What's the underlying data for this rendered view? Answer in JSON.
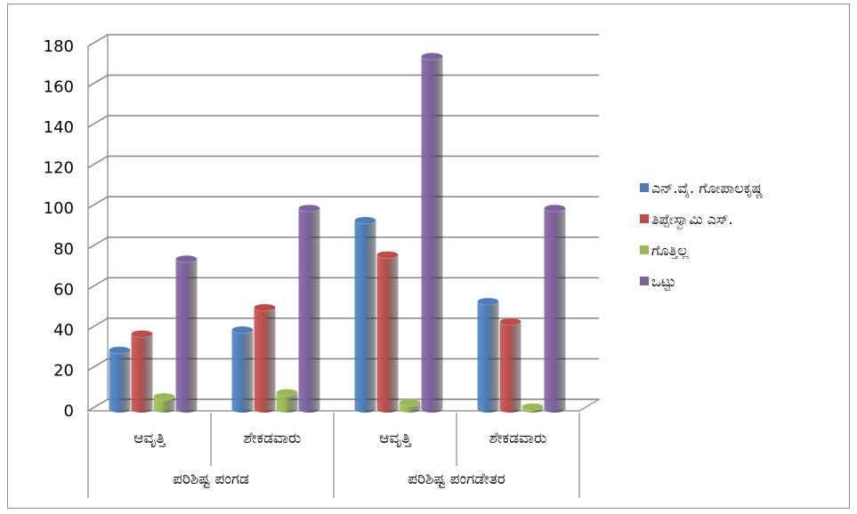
{
  "chart_data": {
    "type": "bar",
    "groups": [
      {
        "label": "ಪರಿಶಿಷ್ಟ ಪಂಗಡ",
        "categories": [
          "ಆವೃತ್ತಿ",
          "ಶೇಕಡವಾರು"
        ]
      },
      {
        "label": "ಪರಿಶಿಷ್ಟ ಪಂಗಡೇತರ",
        "categories": [
          "ಆವೃತ್ತಿ",
          "ಶೇಕಡವಾರು"
        ]
      }
    ],
    "categories": [
      "ಆವೃತ್ತಿ",
      "ಶೇಕಡವಾರು",
      "ಆವೃತ್ತಿ",
      "ಶೇಕಡವಾರು"
    ],
    "series": [
      {
        "name": "ಎನ್.ವೈ. ಗೋಪಾಲಕೃಷ್ಣ",
        "color": "#4a7ebb",
        "values": [
          30,
          40,
          94,
          54
        ]
      },
      {
        "name": "ತಿಪ್ಪೇಸ್ವಾಮಿ ಎಸ್.",
        "color": "#be4b48",
        "values": [
          38,
          51,
          77,
          44
        ]
      },
      {
        "name": "ಗೊತ್ತಿಲ್ಲ",
        "color": "#98b954",
        "values": [
          7,
          9,
          4,
          2
        ]
      },
      {
        "name": "ಒಟ್ಟು",
        "color": "#7d60a0",
        "values": [
          75,
          100,
          175,
          100
        ]
      }
    ],
    "ylim": [
      0,
      180
    ],
    "yticks": [
      "0",
      "20",
      "40",
      "60",
      "80",
      "100",
      "120",
      "140",
      "160",
      "180"
    ],
    "grid": true,
    "legend": "right",
    "title": "",
    "xlabel": "",
    "ylabel": ""
  }
}
